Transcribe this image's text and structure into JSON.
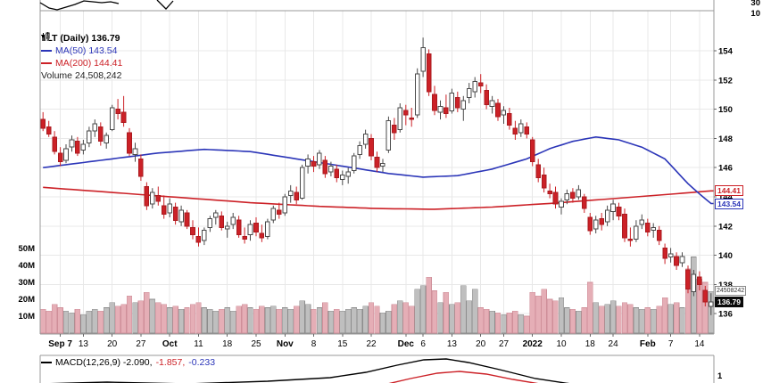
{
  "legend": {
    "symbol_label": "TLT (Daily) 136.79",
    "ma50_label": "MA(50) 143.54",
    "ma200_label": "MA(200) 144.41",
    "volume_label": "Volume 24,508,242"
  },
  "top_panel": {
    "labels": [
      "30",
      "10"
    ]
  },
  "macd_panel": {
    "label_main": "MACD(12,26,9) -2.090,",
    "label_signal": "-1.857,",
    "label_hist": "-0.233",
    "axis_label": "1"
  },
  "price_tags": [
    {
      "name": "ma200-price-tag",
      "value": "144.41",
      "price": 144.41,
      "style": "outline-red"
    },
    {
      "name": "ma50-price-tag",
      "value": "143.54",
      "price": 143.54,
      "style": "outline-blue"
    },
    {
      "name": "volume-tag",
      "value": "24508242",
      "vol_m": 24.51,
      "style": "volume"
    },
    {
      "name": "last-price-tag",
      "value": "136.79",
      "price": 136.79,
      "style": "solid-black"
    }
  ],
  "chart_data": {
    "type": "candlestick",
    "symbol": "TLT",
    "timeframe": "Daily",
    "last_price": 136.79,
    "ma50_last": 143.54,
    "ma200_last": 144.41,
    "volume_last": 24508242,
    "macd": {
      "macd": -2.09,
      "signal": -1.857,
      "histogram": -0.233,
      "params": "12,26,9"
    },
    "y_axis": {
      "ticks": [
        136,
        138,
        140,
        142,
        144,
        146,
        148,
        150,
        152,
        154
      ],
      "min": 135.5,
      "max": 155.5
    },
    "volume_axis": {
      "ticks": [
        10,
        20,
        30,
        40,
        50
      ],
      "unit": "M"
    },
    "x_axis": {
      "ticks": [
        {
          "i": 3,
          "label": "Sep 7",
          "bold": true
        },
        {
          "i": 7,
          "label": "13"
        },
        {
          "i": 12,
          "label": "20"
        },
        {
          "i": 17,
          "label": "27"
        },
        {
          "i": 22,
          "label": "Oct",
          "bold": true
        },
        {
          "i": 27,
          "label": "11"
        },
        {
          "i": 32,
          "label": "18"
        },
        {
          "i": 37,
          "label": "25"
        },
        {
          "i": 42,
          "label": "Nov",
          "bold": true
        },
        {
          "i": 47,
          "label": "8"
        },
        {
          "i": 52,
          "label": "15"
        },
        {
          "i": 57,
          "label": "22"
        },
        {
          "i": 63,
          "label": "Dec",
          "bold": true
        },
        {
          "i": 66,
          "label": "6"
        },
        {
          "i": 71,
          "label": "13"
        },
        {
          "i": 76,
          "label": "20"
        },
        {
          "i": 80,
          "label": "27"
        },
        {
          "i": 85,
          "label": "2022",
          "bold": true
        },
        {
          "i": 90,
          "label": "10"
        },
        {
          "i": 95,
          "label": "18"
        },
        {
          "i": 99,
          "label": "24"
        },
        {
          "i": 105,
          "label": "Feb",
          "bold": true
        },
        {
          "i": 109,
          "label": "7"
        },
        {
          "i": 114,
          "label": "14"
        }
      ]
    },
    "ohlcv": [
      [
        149.3,
        149.8,
        148.5,
        148.7,
        14
      ],
      [
        148.8,
        149.2,
        148.1,
        148.3,
        13
      ],
      [
        148.1,
        148.5,
        146.9,
        147.1,
        17
      ],
      [
        147.0,
        147.4,
        146.1,
        146.4,
        15
      ],
      [
        146.5,
        147.6,
        146.3,
        147.3,
        13
      ],
      [
        147.4,
        148.2,
        147.1,
        147.9,
        12
      ],
      [
        147.8,
        148.1,
        146.8,
        147.0,
        14
      ],
      [
        147.2,
        147.9,
        146.9,
        147.6,
        11
      ],
      [
        147.7,
        148.8,
        147.4,
        148.5,
        13
      ],
      [
        148.5,
        149.3,
        148.1,
        149.0,
        14
      ],
      [
        148.8,
        149.1,
        147.5,
        147.8,
        13
      ],
      [
        147.7,
        148.4,
        147.3,
        148.2,
        15
      ],
      [
        148.6,
        150.3,
        148.5,
        150.1,
        18
      ],
      [
        150.0,
        150.7,
        149.3,
        149.7,
        16
      ],
      [
        149.8,
        150.9,
        148.8,
        149.1,
        17
      ],
      [
        148.4,
        148.7,
        146.8,
        147.0,
        22
      ],
      [
        146.9,
        147.7,
        146.4,
        147.3,
        18
      ],
      [
        146.6,
        146.9,
        145.1,
        145.4,
        19
      ],
      [
        144.7,
        145.0,
        143.1,
        143.4,
        24
      ],
      [
        143.5,
        144.6,
        143.2,
        144.3,
        20
      ],
      [
        144.1,
        144.7,
        143.4,
        143.7,
        18
      ],
      [
        143.4,
        144.1,
        142.5,
        142.8,
        17
      ],
      [
        142.9,
        143.9,
        142.6,
        143.5,
        15
      ],
      [
        143.3,
        143.6,
        142.1,
        142.4,
        16
      ],
      [
        142.3,
        143.4,
        142.0,
        143.1,
        14
      ],
      [
        142.9,
        143.1,
        141.8,
        142.0,
        15
      ],
      [
        141.9,
        142.4,
        141.1,
        141.4,
        17
      ],
      [
        141.3,
        141.9,
        140.6,
        140.9,
        18
      ],
      [
        141.0,
        141.9,
        140.7,
        141.7,
        15
      ],
      [
        141.9,
        142.7,
        141.6,
        142.5,
        14
      ],
      [
        142.6,
        143.1,
        142.1,
        142.9,
        13
      ],
      [
        142.7,
        143.0,
        141.7,
        141.9,
        14
      ],
      [
        141.8,
        142.3,
        141.2,
        142.0,
        15
      ],
      [
        142.1,
        142.9,
        141.8,
        142.6,
        13
      ],
      [
        142.4,
        142.7,
        141.2,
        141.4,
        16
      ],
      [
        141.3,
        141.9,
        140.8,
        141.1,
        17
      ],
      [
        141.4,
        142.4,
        141.0,
        142.1,
        15
      ],
      [
        142.2,
        142.6,
        141.3,
        141.6,
        14
      ],
      [
        141.5,
        142.1,
        140.9,
        141.2,
        16
      ],
      [
        141.3,
        142.5,
        141.1,
        142.3,
        15
      ],
      [
        142.4,
        143.4,
        142.2,
        143.2,
        16
      ],
      [
        143.1,
        143.6,
        142.5,
        142.8,
        14
      ],
      [
        142.9,
        144.2,
        142.7,
        144.0,
        15
      ],
      [
        144.1,
        144.8,
        143.6,
        144.4,
        14
      ],
      [
        144.3,
        144.7,
        143.5,
        143.8,
        16
      ],
      [
        143.9,
        146.2,
        143.8,
        146.0,
        19
      ],
      [
        146.1,
        146.9,
        145.6,
        146.6,
        17
      ],
      [
        146.4,
        146.8,
        145.7,
        146.1,
        14
      ],
      [
        146.2,
        147.2,
        145.9,
        147.0,
        15
      ],
      [
        146.5,
        146.8,
        145.3,
        145.6,
        18
      ],
      [
        145.7,
        146.4,
        145.4,
        146.1,
        13
      ],
      [
        145.9,
        146.2,
        145.0,
        145.3,
        14
      ],
      [
        145.2,
        145.8,
        144.8,
        145.5,
        13
      ],
      [
        145.4,
        146.0,
        144.9,
        145.7,
        14
      ],
      [
        145.8,
        147.0,
        145.6,
        146.8,
        15
      ],
      [
        146.9,
        147.8,
        146.6,
        147.5,
        14
      ],
      [
        147.6,
        148.6,
        147.3,
        148.3,
        16
      ],
      [
        148.0,
        148.3,
        146.5,
        146.8,
        18
      ],
      [
        146.7,
        147.1,
        145.7,
        146.0,
        16
      ],
      [
        146.1,
        146.6,
        145.7,
        146.3,
        12
      ],
      [
        147.2,
        149.5,
        147.0,
        149.2,
        13
      ],
      [
        148.9,
        149.4,
        147.9,
        148.4,
        17
      ],
      [
        148.6,
        150.4,
        148.4,
        150.1,
        19
      ],
      [
        149.9,
        150.3,
        148.9,
        149.6,
        18
      ],
      [
        149.4,
        150.1,
        148.8,
        149.3,
        16
      ],
      [
        149.6,
        152.8,
        149.4,
        152.4,
        26
      ],
      [
        152.6,
        154.9,
        152.2,
        154.2,
        28
      ],
      [
        153.8,
        154.1,
        150.9,
        151.2,
        33
      ],
      [
        151.0,
        151.6,
        149.6,
        149.9,
        25
      ],
      [
        149.8,
        150.6,
        149.3,
        150.2,
        18
      ],
      [
        150.1,
        151.0,
        149.4,
        149.7,
        24
      ],
      [
        149.9,
        151.4,
        149.7,
        151.1,
        17
      ],
      [
        150.8,
        151.2,
        149.8,
        150.1,
        18
      ],
      [
        150.0,
        150.9,
        149.2,
        150.6,
        28
      ],
      [
        150.8,
        151.8,
        150.4,
        151.4,
        19
      ],
      [
        151.2,
        152.2,
        150.8,
        151.9,
        26
      ],
      [
        151.8,
        152.4,
        151.1,
        151.6,
        15
      ],
      [
        151.3,
        151.7,
        150.0,
        150.3,
        14
      ],
      [
        150.2,
        150.9,
        149.7,
        150.6,
        13
      ],
      [
        150.4,
        150.7,
        149.2,
        149.5,
        12
      ],
      [
        149.6,
        150.2,
        149.0,
        149.9,
        11
      ],
      [
        149.7,
        150.1,
        148.6,
        148.9,
        12
      ],
      [
        148.7,
        149.2,
        147.9,
        148.3,
        13
      ],
      [
        148.4,
        149.3,
        148.1,
        149.0,
        11
      ],
      [
        148.8,
        149.1,
        148.0,
        148.3,
        10
      ],
      [
        147.9,
        148.1,
        146.1,
        146.4,
        24
      ],
      [
        146.2,
        146.6,
        145.0,
        145.3,
        22
      ],
      [
        145.5,
        146.0,
        144.3,
        144.6,
        26
      ],
      [
        144.4,
        144.9,
        143.9,
        144.2,
        20
      ],
      [
        144.3,
        144.7,
        143.2,
        143.5,
        19
      ],
      [
        143.3,
        143.9,
        142.8,
        143.7,
        21
      ],
      [
        143.8,
        144.5,
        143.5,
        144.2,
        15
      ],
      [
        144.3,
        144.6,
        143.6,
        143.9,
        14
      ],
      [
        144.0,
        144.8,
        143.8,
        144.5,
        13
      ],
      [
        144.0,
        144.2,
        142.9,
        143.2,
        15
      ],
      [
        142.6,
        142.9,
        141.4,
        141.7,
        30
      ],
      [
        141.8,
        142.7,
        141.5,
        142.4,
        18
      ],
      [
        142.5,
        142.9,
        141.7,
        142.1,
        16
      ],
      [
        142.3,
        143.4,
        142.0,
        143.1,
        17
      ],
      [
        143.0,
        143.8,
        142.4,
        143.5,
        19
      ],
      [
        143.3,
        143.6,
        142.4,
        142.7,
        16
      ],
      [
        142.8,
        143.2,
        140.9,
        141.2,
        18
      ],
      [
        141.1,
        141.9,
        140.6,
        141.0,
        17
      ],
      [
        141.1,
        142.4,
        140.9,
        142.0,
        15
      ],
      [
        142.1,
        142.8,
        141.8,
        142.4,
        14
      ],
      [
        142.2,
        142.5,
        141.3,
        141.6,
        15
      ],
      [
        141.7,
        142.2,
        141.2,
        141.9,
        14
      ],
      [
        141.7,
        142.0,
        140.7,
        141.0,
        16
      ],
      [
        140.5,
        140.8,
        139.4,
        139.8,
        21
      ],
      [
        139.9,
        140.5,
        139.5,
        140.1,
        17
      ],
      [
        139.9,
        140.2,
        139.0,
        139.3,
        18
      ],
      [
        139.5,
        140.2,
        139.2,
        139.9,
        15
      ],
      [
        139.0,
        139.3,
        137.4,
        137.7,
        38
      ],
      [
        137.5,
        139.0,
        137.2,
        138.7,
        45
      ],
      [
        138.5,
        138.9,
        137.6,
        138.0,
        32
      ],
      [
        137.6,
        137.9,
        136.5,
        136.8,
        30
      ],
      [
        136.5,
        137.4,
        135.9,
        136.79,
        24.5
      ]
    ],
    "ma50_points": [
      [
        0,
        146.0
      ],
      [
        10,
        146.5
      ],
      [
        20,
        147.0
      ],
      [
        28,
        147.25
      ],
      [
        36,
        147.1
      ],
      [
        44,
        146.6
      ],
      [
        52,
        146.1
      ],
      [
        60,
        145.6
      ],
      [
        66,
        145.35
      ],
      [
        72,
        145.45
      ],
      [
        78,
        145.9
      ],
      [
        84,
        146.6
      ],
      [
        88,
        147.3
      ],
      [
        92,
        147.8
      ],
      [
        96,
        148.1
      ],
      [
        100,
        147.9
      ],
      [
        104,
        147.4
      ],
      [
        108,
        146.6
      ],
      [
        112,
        144.9
      ],
      [
        114,
        144.2
      ],
      [
        116,
        143.54
      ]
    ],
    "ma200_points": [
      [
        0,
        144.65
      ],
      [
        12,
        144.3
      ],
      [
        24,
        143.95
      ],
      [
        36,
        143.6
      ],
      [
        48,
        143.35
      ],
      [
        58,
        143.2
      ],
      [
        68,
        143.15
      ],
      [
        78,
        143.3
      ],
      [
        88,
        143.55
      ],
      [
        98,
        143.85
      ],
      [
        108,
        144.15
      ],
      [
        116,
        144.41
      ]
    ],
    "top_curve_fragments": [
      [
        [
          45,
          3
        ],
        [
          55,
          9
        ],
        [
          64,
          11
        ],
        [
          74,
          8
        ],
        [
          84,
          5
        ],
        [
          94,
          1
        ],
        [
          104,
          2
        ],
        [
          114,
          3
        ],
        [
          124,
          2
        ],
        [
          133,
          4
        ]
      ],
      [
        [
          176,
          0
        ],
        [
          186,
          10
        ],
        [
          194,
          1
        ]
      ]
    ],
    "macd_black_curve": [
      [
        45,
        431
      ],
      [
        120,
        429
      ],
      [
        210,
        431
      ],
      [
        300,
        428
      ],
      [
        370,
        424
      ],
      [
        410,
        418
      ],
      [
        445,
        410
      ],
      [
        475,
        404
      ],
      [
        500,
        403
      ],
      [
        525,
        407
      ],
      [
        560,
        415
      ],
      [
        600,
        425
      ],
      [
        640,
        431
      ],
      [
        700,
        433
      ]
    ],
    "macd_red_curve": [
      [
        430,
        432
      ],
      [
        460,
        425
      ],
      [
        490,
        419
      ],
      [
        515,
        417
      ],
      [
        545,
        420
      ],
      [
        575,
        426
      ],
      [
        605,
        431
      ]
    ],
    "colors": {
      "up": "#ffffff",
      "up_border": "#4a4a4a",
      "down": "#cc2127",
      "down_border": "#aa1a1f",
      "vol_up": "#bfbfbf",
      "vol_up_border": "#8c8c8c",
      "vol_down": "#e5aeb6",
      "vol_down_border": "#cf8f99",
      "ma50": "#2b35b8",
      "ma200": "#cc2127",
      "grid": "#e8e8e8",
      "border": "#999999",
      "macd_line": "#000000",
      "macd_signal": "#cc2127"
    }
  }
}
